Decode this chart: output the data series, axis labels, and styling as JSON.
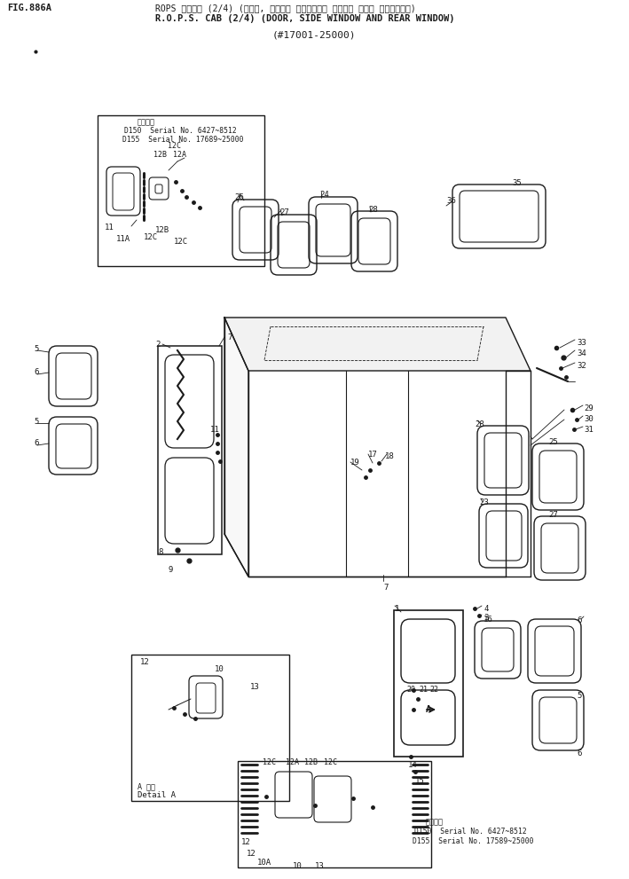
{
  "title_line1": "ROPS キャブ゜ (2/4) (ドアー, サイド゜ ウインドー゜ および゜ リアー ウインドー゜)",
  "title_line2": "R.O.P.S. CAB (2/4) (DOOR, SIDE WINDOW AND REAR WINDOW)",
  "fig_label": "FIG.886A",
  "serial_range": "(#17001-25000)",
  "bg_color": "#ffffff",
  "fg_color": "#1a1a1a"
}
